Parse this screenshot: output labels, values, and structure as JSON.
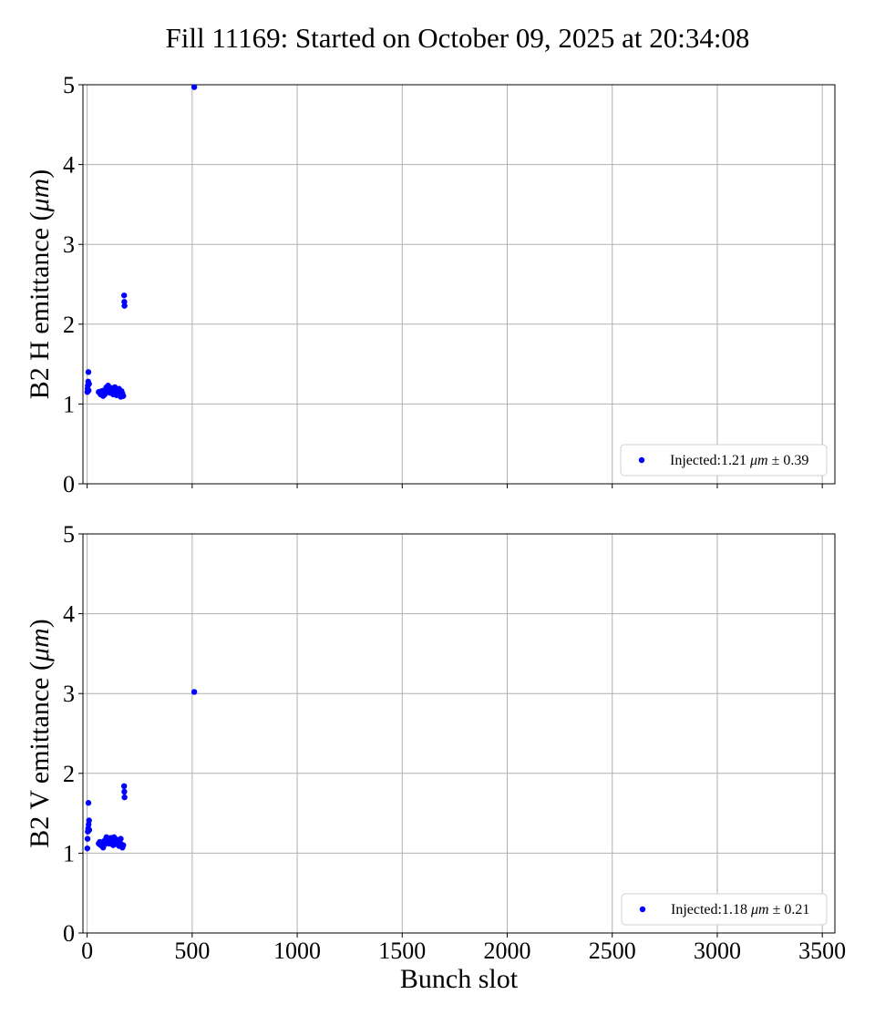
{
  "title": "Fill 11169: Started on October 09, 2025 at 20:34:08",
  "colors": {
    "marker": "#0000ff",
    "grid": "#b0b0b0",
    "axis": "#000000"
  },
  "chart_data": [
    {
      "type": "scatter",
      "xlabel": "",
      "ylabel": "B2 H emittance (μm)",
      "ylabel_parts": {
        "pre": "B2 H emittance (",
        "italic": "μm",
        "post": ")"
      },
      "xlim": [
        -20,
        3560
      ],
      "ylim": [
        0,
        5
      ],
      "xticks": [
        0,
        500,
        1000,
        1500,
        2000,
        2500,
        3000,
        3500
      ],
      "xtick_labels_visible": false,
      "yticks": [
        0,
        1,
        2,
        3,
        4,
        5
      ],
      "grid": true,
      "legend_position": "lower-right",
      "series": [
        {
          "name": "Injected:1.21 μm ± 0.39",
          "legend_parts": {
            "pre": "Injected:1.21 ",
            "italic": "μm",
            "post": " ± 0.39"
          },
          "points": [
            [
              1,
              1.15
            ],
            [
              2,
              1.19
            ],
            [
              3,
              1.23
            ],
            [
              5,
              1.28
            ],
            [
              6,
              1.4
            ],
            [
              7,
              1.17
            ],
            [
              9,
              1.25
            ],
            [
              55,
              1.15
            ],
            [
              60,
              1.14
            ],
            [
              64,
              1.12
            ],
            [
              68,
              1.16
            ],
            [
              72,
              1.13
            ],
            [
              76,
              1.1
            ],
            [
              80,
              1.17
            ],
            [
              84,
              1.12
            ],
            [
              88,
              1.15
            ],
            [
              92,
              1.21
            ],
            [
              96,
              1.18
            ],
            [
              100,
              1.23
            ],
            [
              104,
              1.16
            ],
            [
              108,
              1.14
            ],
            [
              112,
              1.18
            ],
            [
              116,
              1.2
            ],
            [
              120,
              1.15
            ],
            [
              124,
              1.12
            ],
            [
              128,
              1.16
            ],
            [
              132,
              1.21
            ],
            [
              136,
              1.13
            ],
            [
              140,
              1.11
            ],
            [
              144,
              1.17
            ],
            [
              148,
              1.14
            ],
            [
              152,
              1.19
            ],
            [
              156,
              1.12
            ],
            [
              160,
              1.09
            ],
            [
              164,
              1.16
            ],
            [
              168,
              1.13
            ],
            [
              172,
              1.1
            ],
            [
              176,
              2.36
            ],
            [
              177,
              2.28
            ],
            [
              178,
              2.23
            ],
            [
              510,
              4.97
            ]
          ]
        }
      ]
    },
    {
      "type": "scatter",
      "xlabel": "Bunch slot",
      "ylabel": "B2 V emittance (μm)",
      "ylabel_parts": {
        "pre": "B2 V emittance (",
        "italic": "μm",
        "post": ")"
      },
      "xlim": [
        -20,
        3560
      ],
      "ylim": [
        0,
        5
      ],
      "xticks": [
        0,
        500,
        1000,
        1500,
        2000,
        2500,
        3000,
        3500
      ],
      "xtick_labels_visible": true,
      "yticks": [
        0,
        1,
        2,
        3,
        4,
        5
      ],
      "grid": true,
      "legend_position": "lower-right",
      "series": [
        {
          "name": "Injected:1.18 μm ± 0.21",
          "legend_parts": {
            "pre": "Injected:1.18 ",
            "italic": "μm",
            "post": " ± 0.21"
          },
          "points": [
            [
              1,
              1.06
            ],
            [
              2,
              1.18
            ],
            [
              3,
              1.27
            ],
            [
              5,
              1.31
            ],
            [
              6,
              1.63
            ],
            [
              7,
              1.36
            ],
            [
              9,
              1.41
            ],
            [
              10,
              1.29
            ],
            [
              55,
              1.12
            ],
            [
              60,
              1.14
            ],
            [
              64,
              1.1
            ],
            [
              68,
              1.13
            ],
            [
              72,
              1.09
            ],
            [
              76,
              1.07
            ],
            [
              80,
              1.15
            ],
            [
              84,
              1.11
            ],
            [
              88,
              1.17
            ],
            [
              92,
              1.2
            ],
            [
              96,
              1.14
            ],
            [
              100,
              1.18
            ],
            [
              104,
              1.12
            ],
            [
              108,
              1.15
            ],
            [
              112,
              1.19
            ],
            [
              116,
              1.13
            ],
            [
              120,
              1.16
            ],
            [
              124,
              1.1
            ],
            [
              128,
              1.2
            ],
            [
              132,
              1.14
            ],
            [
              136,
              1.12
            ],
            [
              140,
              1.17
            ],
            [
              144,
              1.11
            ],
            [
              148,
              1.15
            ],
            [
              152,
              1.09
            ],
            [
              156,
              1.13
            ],
            [
              160,
              1.18
            ],
            [
              164,
              1.11
            ],
            [
              168,
              1.07
            ],
            [
              172,
              1.1
            ],
            [
              176,
              1.84
            ],
            [
              177,
              1.77
            ],
            [
              178,
              1.7
            ],
            [
              510,
              3.02
            ]
          ]
        }
      ]
    }
  ]
}
